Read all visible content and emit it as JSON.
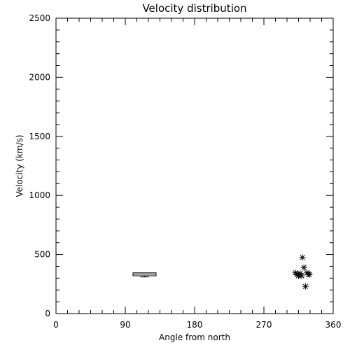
{
  "chart_data": {
    "type": "scatter",
    "title": "Velocity distribution",
    "xlabel": "Angle from north",
    "ylabel": "Velocity (km/s)",
    "xlim": [
      0,
      360
    ],
    "ylim": [
      0,
      2500
    ],
    "x_ticks": [
      "0",
      "90",
      "180",
      "270",
      "360"
    ],
    "y_ticks": [
      "0",
      "500",
      "1000",
      "1500",
      "2000",
      "2500"
    ],
    "grid": false,
    "legend": "none",
    "box": {
      "x_range": [
        100,
        130
      ],
      "q1": 320,
      "q3": 345,
      "median": 335,
      "whisker_low": 310,
      "whisker_high": 345
    },
    "points": [
      {
        "x": 311,
        "y": 345
      },
      {
        "x": 313,
        "y": 330
      },
      {
        "x": 315,
        "y": 320
      },
      {
        "x": 317,
        "y": 340
      },
      {
        "x": 319,
        "y": 320
      },
      {
        "x": 320,
        "y": 475
      },
      {
        "x": 322,
        "y": 390
      },
      {
        "x": 324,
        "y": 230
      },
      {
        "x": 326,
        "y": 345
      },
      {
        "x": 328,
        "y": 335
      },
      {
        "x": 329,
        "y": 330
      }
    ],
    "marker": "asterisk",
    "color": "#000000"
  }
}
